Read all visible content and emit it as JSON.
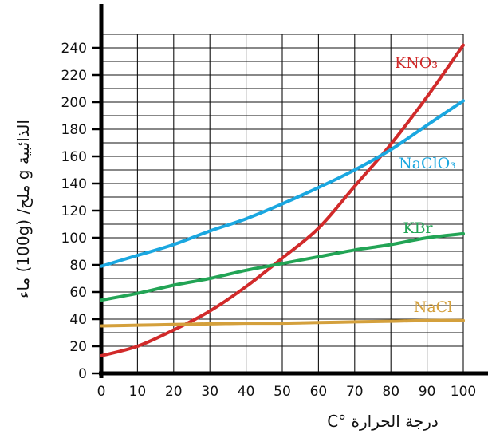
{
  "chart_data": {
    "type": "line",
    "xlabel": "درجة الحرارة °C",
    "ylabel": "الذائبية g ملح/ (100g) ماء",
    "xlim": [
      0,
      100
    ],
    "ylim": [
      0,
      240
    ],
    "x_ticks": [
      "0",
      "10",
      "20",
      "30",
      "40",
      "50",
      "60",
      "70",
      "80",
      "90",
      "100"
    ],
    "y_ticks": [
      "0",
      "20",
      "40",
      "60",
      "80",
      "100",
      "120",
      "140",
      "160",
      "180",
      "200",
      "220",
      "240"
    ],
    "grid": true,
    "x": [
      0,
      10,
      20,
      30,
      40,
      50,
      60,
      70,
      80,
      90,
      100
    ],
    "series": [
      {
        "name": "KNO₃",
        "color": "#d12a2a",
        "values": [
          13,
          20,
          32,
          46,
          64,
          85,
          107,
          138,
          169,
          204,
          242
        ]
      },
      {
        "name": "NaClO₃",
        "color": "#1aa7e0",
        "values": [
          79,
          87,
          95,
          105,
          114,
          125,
          137,
          150,
          165,
          183,
          201
        ]
      },
      {
        "name": "KBr",
        "color": "#22a455",
        "values": [
          54,
          59,
          65,
          70,
          76,
          81,
          86,
          91,
          95,
          100,
          103
        ]
      },
      {
        "name": "NaCl",
        "color": "#d4a03c",
        "values": [
          35,
          35.5,
          36,
          36.5,
          37,
          37,
          37.5,
          38,
          38.5,
          39,
          39
        ]
      }
    ]
  }
}
